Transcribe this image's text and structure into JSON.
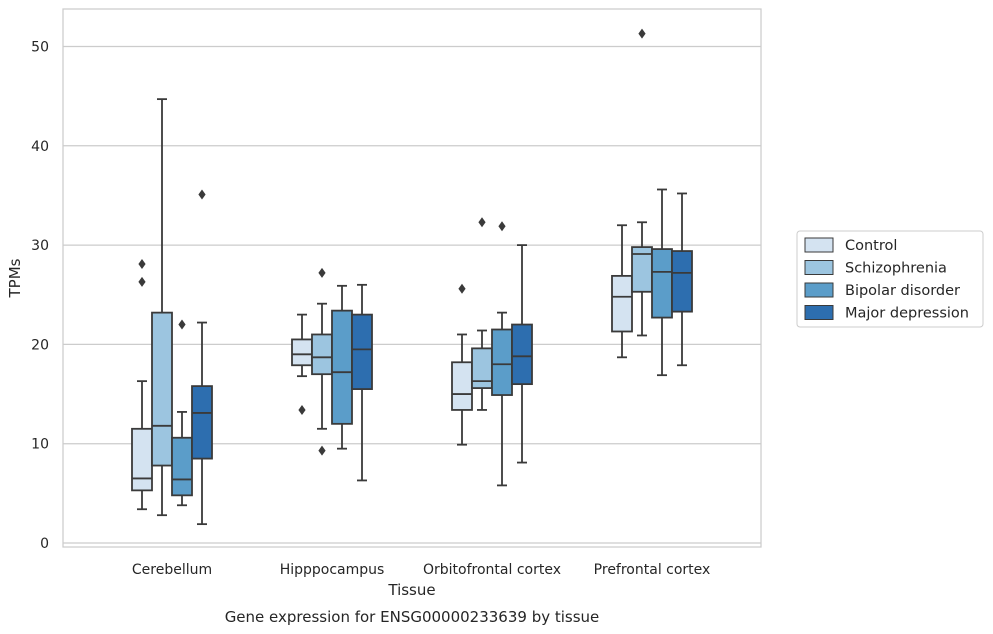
{
  "chart_data": {
    "type": "box",
    "caption": "Gene expression for ENSG00000233639 by tissue",
    "xlabel": "Tissue",
    "ylabel": "TPMs",
    "ylim": [
      -0.5,
      54
    ],
    "yticks": [
      0,
      10,
      20,
      30,
      40,
      50
    ],
    "grid": "horizontal",
    "legend_position": "right",
    "categories": [
      "Cerebellum",
      "Hipppocampus",
      "Orbitofrontal cortex",
      "Prefrontal cortex"
    ],
    "series": [
      {
        "name": "Control",
        "color": "#d4e3f1",
        "boxes": [
          {
            "whislo": 3.4,
            "q1": 5.3,
            "med": 6.5,
            "q3": 11.5,
            "whishi": 16.3,
            "fliers": [
              26.3,
              28.1
            ]
          },
          {
            "whislo": 16.8,
            "q1": 17.9,
            "med": 19.0,
            "q3": 20.5,
            "whishi": 23.0,
            "fliers": [
              13.4
            ]
          },
          {
            "whislo": 9.9,
            "q1": 13.4,
            "med": 15.0,
            "q3": 18.2,
            "whishi": 21.0,
            "fliers": [
              25.6
            ]
          },
          {
            "whislo": 18.7,
            "q1": 21.3,
            "med": 24.8,
            "q3": 26.9,
            "whishi": 32.0,
            "fliers": []
          }
        ]
      },
      {
        "name": "Schizophrenia",
        "color": "#9cc5e0",
        "boxes": [
          {
            "whislo": 2.8,
            "q1": 7.8,
            "med": 11.8,
            "q3": 23.2,
            "whishi": 44.7,
            "fliers": []
          },
          {
            "whislo": 11.5,
            "q1": 17.0,
            "med": 18.7,
            "q3": 21.0,
            "whishi": 24.1,
            "fliers": [
              27.2,
              9.3
            ]
          },
          {
            "whislo": 13.4,
            "q1": 15.6,
            "med": 16.3,
            "q3": 19.6,
            "whishi": 21.4,
            "fliers": [
              32.3
            ]
          },
          {
            "whislo": 20.9,
            "q1": 25.3,
            "med": 29.1,
            "q3": 29.8,
            "whishi": 32.3,
            "fliers": [
              51.3
            ]
          }
        ]
      },
      {
        "name": "Bipolar disorder",
        "color": "#5b9dc9",
        "boxes": [
          {
            "whislo": 3.8,
            "q1": 4.8,
            "med": 6.4,
            "q3": 10.6,
            "whishi": 13.2,
            "fliers": [
              22.0
            ]
          },
          {
            "whislo": 9.5,
            "q1": 12.0,
            "med": 17.2,
            "q3": 23.4,
            "whishi": 25.9,
            "fliers": []
          },
          {
            "whislo": 5.8,
            "q1": 14.9,
            "med": 18.0,
            "q3": 21.5,
            "whishi": 23.2,
            "fliers": [
              31.9
            ]
          },
          {
            "whislo": 16.9,
            "q1": 22.7,
            "med": 27.3,
            "q3": 29.6,
            "whishi": 35.6,
            "fliers": []
          }
        ]
      },
      {
        "name": "Major depression",
        "color": "#2d6eaf",
        "boxes": [
          {
            "whislo": 1.9,
            "q1": 8.5,
            "med": 13.1,
            "q3": 15.8,
            "whishi": 22.2,
            "fliers": [
              35.1
            ]
          },
          {
            "whislo": 6.3,
            "q1": 15.5,
            "med": 19.5,
            "q3": 23.0,
            "whishi": 26.0,
            "fliers": []
          },
          {
            "whislo": 8.1,
            "q1": 16.0,
            "med": 18.8,
            "q3": 22.0,
            "whishi": 30.0,
            "fliers": []
          },
          {
            "whislo": 17.9,
            "q1": 23.3,
            "med": 27.2,
            "q3": 29.4,
            "whishi": 35.2,
            "fliers": []
          }
        ]
      }
    ]
  }
}
